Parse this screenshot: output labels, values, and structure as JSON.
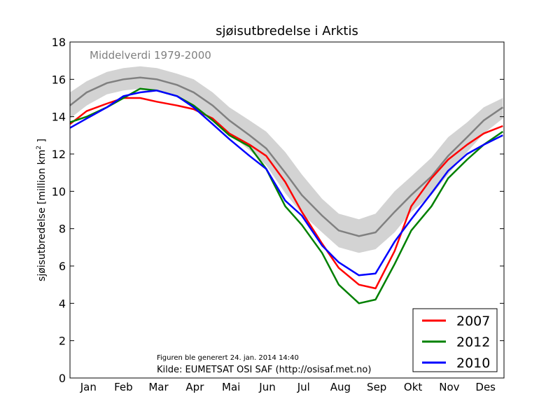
{
  "chart_data": {
    "type": "line",
    "title": "sjøisutbredelse i Arktis",
    "ylabel": "sjøisutbredelse [million km",
    "ylabel_sup": "2",
    "ylabel_tail": " ]",
    "xlabel": "",
    "ylim": [
      0,
      18
    ],
    "yticks": [
      0,
      2,
      4,
      6,
      8,
      10,
      12,
      14,
      16,
      18
    ],
    "month_labels": [
      "Jan",
      "Feb",
      "Mar",
      "Apr",
      "Mai",
      "Jun",
      "Jul",
      "Aug",
      "Sep",
      "Okt",
      "Nov",
      "Des"
    ],
    "grid": false,
    "legend_position": "bottom-right",
    "mean": {
      "label": "Middelverdi 1979-2000",
      "color": "#808080",
      "band_color": "#d3d3d3",
      "x": [
        1,
        15,
        32,
        46,
        60,
        74,
        91,
        105,
        121,
        135,
        152,
        166,
        182,
        196,
        213,
        227,
        244,
        258,
        274,
        288,
        305,
        319,
        335,
        349,
        365
      ],
      "y": [
        14.6,
        15.3,
        15.8,
        16.0,
        16.1,
        16.0,
        15.7,
        15.3,
        14.6,
        13.8,
        13.0,
        12.3,
        11.0,
        9.8,
        8.7,
        7.9,
        7.6,
        7.8,
        8.9,
        9.8,
        10.8,
        11.9,
        12.9,
        13.8,
        14.5
      ],
      "band_low": [
        13.9,
        14.6,
        15.2,
        15.4,
        15.5,
        15.4,
        15.1,
        14.6,
        13.9,
        13.1,
        12.2,
        11.4,
        9.9,
        8.8,
        7.8,
        7.0,
        6.7,
        6.9,
        7.8,
        8.9,
        9.8,
        10.9,
        12.1,
        13.1,
        13.9
      ],
      "band_high": [
        15.3,
        15.9,
        16.4,
        16.6,
        16.7,
        16.6,
        16.3,
        16.0,
        15.3,
        14.5,
        13.8,
        13.2,
        12.1,
        10.9,
        9.6,
        8.8,
        8.5,
        8.8,
        10.0,
        10.8,
        11.8,
        12.9,
        13.7,
        14.5,
        15.0
      ]
    },
    "series": [
      {
        "name": "2007",
        "color": "#ff0000",
        "x": [
          1,
          15,
          32,
          46,
          60,
          74,
          91,
          105,
          121,
          135,
          152,
          166,
          182,
          196,
          213,
          227,
          244,
          258,
          274,
          288,
          305,
          319,
          335,
          349,
          365
        ],
        "y": [
          13.6,
          14.3,
          14.7,
          15.0,
          15.0,
          14.8,
          14.6,
          14.4,
          13.9,
          13.1,
          12.5,
          11.9,
          10.5,
          8.9,
          7.2,
          5.9,
          5.0,
          4.8,
          6.8,
          9.2,
          10.7,
          11.7,
          12.5,
          13.1,
          13.5
        ]
      },
      {
        "name": "2012",
        "color": "#008000",
        "x": [
          1,
          15,
          32,
          46,
          60,
          74,
          91,
          105,
          121,
          135,
          152,
          166,
          182,
          196,
          213,
          227,
          244,
          258,
          274,
          288,
          305,
          319,
          335,
          349,
          365
        ],
        "y": [
          13.7,
          14.0,
          14.5,
          15.0,
          15.5,
          15.4,
          15.1,
          14.6,
          13.8,
          13.0,
          12.4,
          11.2,
          9.2,
          8.2,
          6.7,
          5.0,
          4.0,
          4.2,
          6.1,
          7.9,
          9.2,
          10.7,
          11.7,
          12.5,
          13.2
        ]
      },
      {
        "name": "2010",
        "color": "#0000ff",
        "x": [
          1,
          15,
          32,
          46,
          60,
          74,
          91,
          105,
          121,
          135,
          152,
          166,
          182,
          196,
          213,
          227,
          244,
          258,
          274,
          288,
          305,
          319,
          335,
          349,
          365
        ],
        "y": [
          13.4,
          13.9,
          14.5,
          15.1,
          15.3,
          15.4,
          15.1,
          14.5,
          13.6,
          12.8,
          11.9,
          11.2,
          9.5,
          8.7,
          7.1,
          6.2,
          5.5,
          5.6,
          7.3,
          8.5,
          9.9,
          11.1,
          12.0,
          12.5,
          13.0
        ]
      }
    ]
  },
  "footer": {
    "generated": "Figuren ble generert 24. jan. 2014 14:40",
    "source": "Kilde: EUMETSAT OSI SAF (http://osisaf.met.no)"
  }
}
